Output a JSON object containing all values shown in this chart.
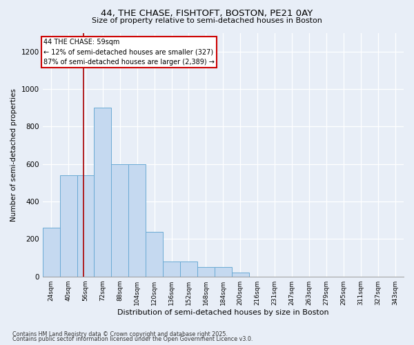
{
  "title1": "44, THE CHASE, FISHTOFT, BOSTON, PE21 0AY",
  "title2": "Size of property relative to semi-detached houses in Boston",
  "xlabel": "Distribution of semi-detached houses by size in Boston",
  "ylabel": "Number of semi-detached properties",
  "categories": [
    "24sqm",
    "40sqm",
    "56sqm",
    "72sqm",
    "88sqm",
    "104sqm",
    "120sqm",
    "136sqm",
    "152sqm",
    "168sqm",
    "184sqm",
    "200sqm",
    "216sqm",
    "231sqm",
    "247sqm",
    "263sqm",
    "279sqm",
    "295sqm",
    "311sqm",
    "327sqm",
    "343sqm"
  ],
  "values": [
    260,
    540,
    540,
    900,
    600,
    600,
    240,
    80,
    80,
    50,
    50,
    20,
    0,
    0,
    0,
    0,
    0,
    0,
    0,
    0,
    0
  ],
  "bar_color": "#c5d9f0",
  "bar_edge_color": "#6aaad4",
  "vline_color": "#aa0000",
  "vline_pos": 1.87,
  "annotation_title": "44 THE CHASE: 59sqm",
  "annotation_line1": "← 12% of semi-detached houses are smaller (327)",
  "annotation_line2": "87% of semi-detached houses are larger (2,389) →",
  "annotation_box_facecolor": "#ffffff",
  "annotation_box_edgecolor": "#cc0000",
  "ylim": [
    0,
    1300
  ],
  "yticks": [
    0,
    200,
    400,
    600,
    800,
    1000,
    1200
  ],
  "footnote1": "Contains HM Land Registry data © Crown copyright and database right 2025.",
  "footnote2": "Contains public sector information licensed under the Open Government Licence v3.0.",
  "bg_color": "#e8eef7",
  "plot_bg_color": "#e8eef7"
}
